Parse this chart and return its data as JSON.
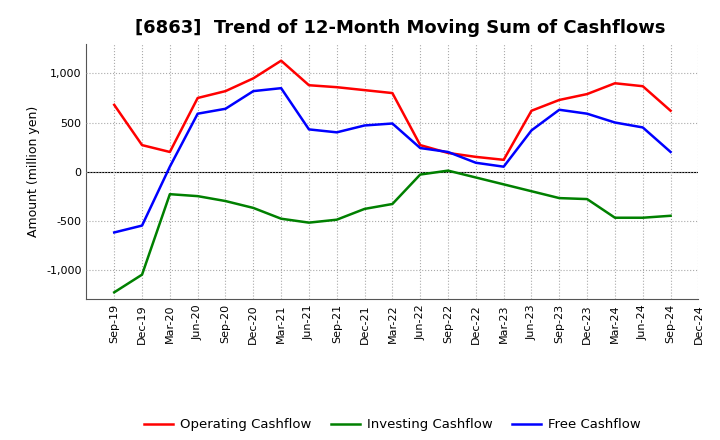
{
  "title": "[6863]  Trend of 12-Month Moving Sum of Cashflows",
  "ylabel": "Amount (million yen)",
  "x_labels": [
    "Sep-19",
    "Dec-19",
    "Mar-20",
    "Jun-20",
    "Sep-20",
    "Dec-20",
    "Mar-21",
    "Jun-21",
    "Sep-21",
    "Dec-21",
    "Mar-22",
    "Jun-22",
    "Sep-22",
    "Dec-22",
    "Mar-23",
    "Jun-23",
    "Sep-23",
    "Dec-23",
    "Mar-24",
    "Jun-24",
    "Sep-24",
    "Dec-24"
  ],
  "operating_cashflow": [
    680,
    270,
    200,
    750,
    820,
    950,
    1130,
    880,
    860,
    830,
    800,
    270,
    190,
    150,
    120,
    620,
    730,
    790,
    900,
    870,
    620,
    null
  ],
  "investing_cashflow": [
    -1230,
    -1050,
    -230,
    -250,
    -300,
    -370,
    -480,
    -520,
    -490,
    -380,
    -330,
    -30,
    10,
    -60,
    -130,
    -200,
    -270,
    -280,
    -470,
    -470,
    -450,
    null
  ],
  "free_cashflow": [
    -620,
    -550,
    50,
    590,
    640,
    820,
    850,
    430,
    400,
    470,
    490,
    240,
    200,
    90,
    50,
    420,
    630,
    590,
    500,
    450,
    200,
    null
  ],
  "operating_color": "#ff0000",
  "investing_color": "#008000",
  "free_color": "#0000ff",
  "ylim": [
    -1300,
    1300
  ],
  "yticks": [
    -1000,
    -500,
    0,
    500,
    1000
  ],
  "grid_color": "#aaaaaa",
  "bg_color": "#ffffff",
  "plot_bg_color": "#ffffff",
  "line_width": 1.8,
  "title_fontsize": 13,
  "legend_fontsize": 9.5,
  "tick_fontsize": 8
}
